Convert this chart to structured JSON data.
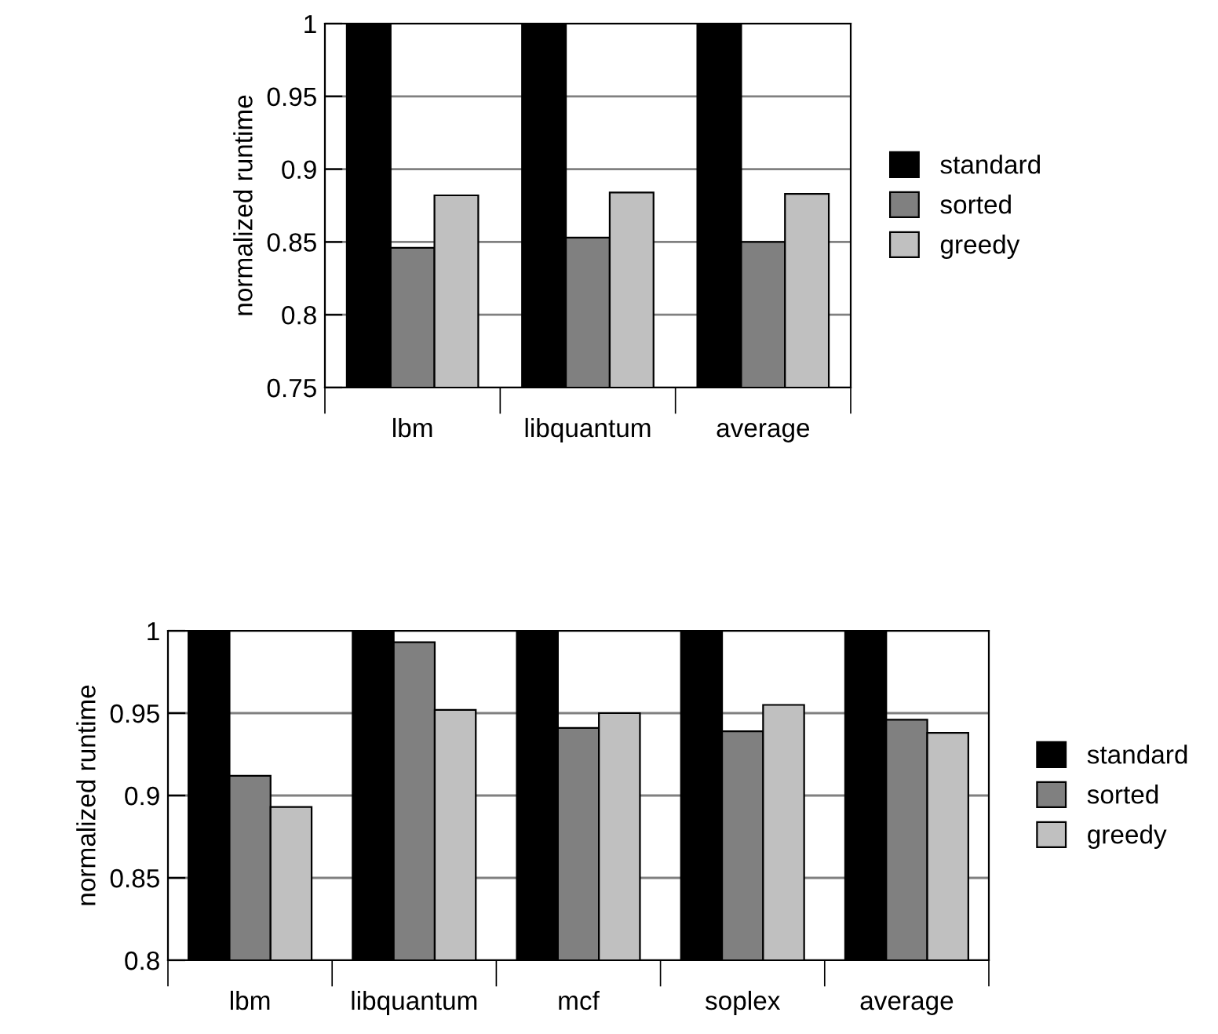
{
  "chart_data": [
    {
      "type": "bar",
      "ylabel": "normalized runtime",
      "categories": [
        "lbm",
        "libquantum",
        "average"
      ],
      "series": [
        {
          "name": "standard",
          "color": "#000000",
          "values": [
            1,
            1,
            1
          ]
        },
        {
          "name": "sorted",
          "color": "#808080",
          "values": [
            0.846,
            0.853,
            0.85
          ]
        },
        {
          "name": "greedy",
          "color": "#c0c0c0",
          "values": [
            0.882,
            0.884,
            0.883
          ]
        }
      ],
      "ylim": [
        0.75,
        1
      ],
      "yticks": [
        0.75,
        0.8,
        0.85,
        0.9,
        0.95,
        1
      ],
      "grid": "y",
      "legend": "right"
    },
    {
      "type": "bar",
      "ylabel": "normalized runtime",
      "categories": [
        "lbm",
        "libquantum",
        "mcf",
        "soplex",
        "average"
      ],
      "series": [
        {
          "name": "standard",
          "color": "#000000",
          "values": [
            1,
            1,
            1,
            1,
            1
          ]
        },
        {
          "name": "sorted",
          "color": "#808080",
          "values": [
            0.912,
            0.993,
            0.941,
            0.939,
            0.946
          ]
        },
        {
          "name": "greedy",
          "color": "#c0c0c0",
          "values": [
            0.893,
            0.952,
            0.95,
            0.955,
            0.938
          ]
        }
      ],
      "ylim": [
        0.8,
        1
      ],
      "yticks": [
        0.8,
        0.85,
        0.9,
        0.95,
        1
      ],
      "grid": "y",
      "legend": "right"
    }
  ]
}
